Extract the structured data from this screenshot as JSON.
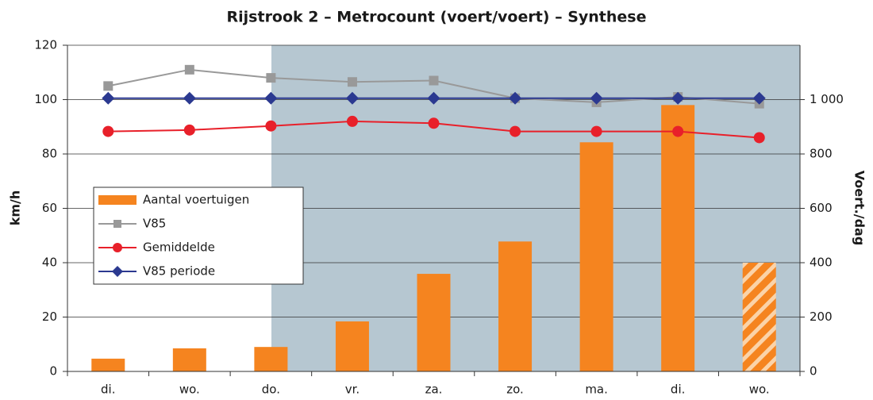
{
  "chart_data": {
    "type": "bar",
    "title": "Rijstrook 2 – Metrocount (voert/voert) – Synthese",
    "ylabel": "km/h",
    "y2label": "Voert./dag",
    "categories": [
      "di.",
      "wo.",
      "do.",
      "vr.",
      "za.",
      "zo.",
      "ma.",
      "di.",
      "wo."
    ],
    "ylim": [
      0,
      120
    ],
    "yticks": [
      0,
      20,
      40,
      60,
      80,
      100,
      120
    ],
    "y2lim": [
      0,
      1200
    ],
    "y2ticks": [
      0,
      200,
      400,
      600,
      800,
      {
        "value": 1000,
        "label": "1 000"
      }
    ],
    "grid": true,
    "legend": "left",
    "series": [
      {
        "name": "Aantal voertuigen",
        "type": "bar",
        "axis": "y2",
        "color": "#f5841f",
        "values": [
          47,
          85,
          90,
          184,
          359,
          478,
          843,
          980,
          400
        ],
        "hatched": [
          false,
          false,
          false,
          false,
          false,
          false,
          false,
          false,
          true
        ]
      },
      {
        "name": "V85",
        "type": "line",
        "marker": "square",
        "color": "#999999",
        "values": [
          105,
          111,
          108,
          106.5,
          107,
          100.5,
          99,
          101,
          98.5
        ]
      },
      {
        "name": "Gemiddelde",
        "type": "line",
        "marker": "circle",
        "color": "#e8202a",
        "values": [
          88.3,
          88.8,
          90.3,
          92,
          91.3,
          88.3,
          88.3,
          88.3,
          86
        ]
      },
      {
        "name": "V85 periode",
        "type": "line",
        "marker": "diamond",
        "color": "#2b3990",
        "values": [
          100.5,
          100.5,
          100.5,
          100.5,
          100.5,
          100.5,
          100.5,
          100.5,
          100.5
        ]
      }
    ]
  }
}
